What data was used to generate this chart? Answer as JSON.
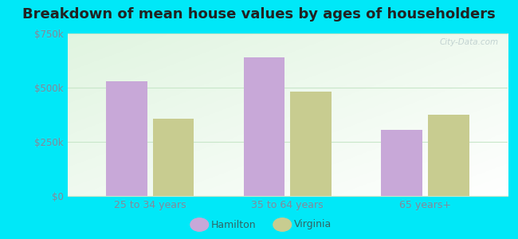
{
  "title": "Breakdown of mean house values by ages of householders",
  "categories": [
    "25 to 34 years",
    "35 to 64 years",
    "65 years+"
  ],
  "hamilton_values": [
    530000,
    640000,
    305000
  ],
  "virginia_values": [
    355000,
    480000,
    375000
  ],
  "hamilton_color": "#c8a8d8",
  "virginia_color": "#c8cc90",
  "bar_width": 0.3,
  "ylim": [
    0,
    750000
  ],
  "yticks": [
    0,
    250000,
    500000,
    750000
  ],
  "ytick_labels": [
    "$0",
    "$250k",
    "$500k",
    "$750k"
  ],
  "background_outer": "#00e8f8",
  "grid_color": "#c8e6c9",
  "title_fontsize": 13,
  "legend_labels": [
    "Hamilton",
    "Virginia"
  ],
  "legend_text_color": "#336666",
  "tick_color": "#888899",
  "watermark": "City-Data.com",
  "watermark_color": "#bbcccc"
}
